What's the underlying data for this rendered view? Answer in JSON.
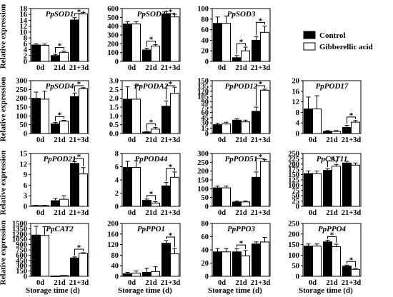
{
  "figure": {
    "y_axis_label": "Relative expression",
    "x_axis_label": "Storage time (d)"
  },
  "legend": {
    "control_label": "Control",
    "ga_label": "Gibberellic acid",
    "control_color": "#000000",
    "ga_color": "#ffffff"
  },
  "chart_data": [
    {
      "type": "bar",
      "title": "PpSOD1",
      "categories": [
        "0d",
        "21d",
        "21+3d"
      ],
      "ylim": [
        0,
        18
      ],
      "yticks": [
        0,
        2,
        4,
        6,
        8,
        10,
        12,
        14,
        16,
        18
      ],
      "series": [
        {
          "name": "Control",
          "values": [
            5.6,
            2.0,
            14.1
          ],
          "errors": [
            0.4,
            0.4,
            0.8
          ]
        },
        {
          "name": "Gibberellic acid",
          "values": [
            5.5,
            3.1,
            16.2
          ],
          "errors": [
            0.4,
            0.4,
            0.5
          ]
        }
      ],
      "significance": [
        1,
        2
      ]
    },
    {
      "type": "bar",
      "title": "PpSOD2",
      "categories": [
        "0d",
        "21d",
        "21+3d"
      ],
      "ylim": [
        0,
        600
      ],
      "yticks": [
        0,
        100,
        200,
        300,
        400,
        500,
        600
      ],
      "series": [
        {
          "name": "Control",
          "values": [
            425,
            130,
            540
          ],
          "errors": [
            25,
            20,
            25
          ]
        },
        {
          "name": "Gibberellic acid",
          "values": [
            425,
            175,
            505
          ],
          "errors": [
            25,
            15,
            30
          ]
        }
      ],
      "significance": [
        1,
        2
      ]
    },
    {
      "type": "bar",
      "title": "PpSOD3",
      "categories": [
        "0d",
        "21d",
        "21+3d"
      ],
      "ylim": [
        0,
        100
      ],
      "yticks": [
        0,
        20,
        40,
        60,
        80,
        100
      ],
      "series": [
        {
          "name": "Control",
          "values": [
            72,
            7,
            40
          ],
          "errors": [
            12,
            4,
            7
          ]
        },
        {
          "name": "Gibberellic acid",
          "values": [
            72,
            20,
            55
          ],
          "errors": [
            14,
            7,
            12
          ]
        }
      ],
      "significance": [
        1,
        2
      ]
    },
    {
      "type": "bar",
      "title": "PpSOD4",
      "categories": [
        "0d",
        "21d",
        "21+3d"
      ],
      "ylim": [
        0,
        300
      ],
      "yticks": [
        0,
        50,
        100,
        150,
        200,
        250,
        300
      ],
      "series": [
        {
          "name": "Control",
          "values": [
            200,
            55,
            210
          ],
          "errors": [
            35,
            8,
            20
          ]
        },
        {
          "name": "Gibberellic acid",
          "values": [
            195,
            70,
            255
          ],
          "errors": [
            45,
            5,
            5
          ]
        }
      ],
      "significance": [
        1,
        2
      ]
    },
    {
      "type": "bar",
      "title": "PpPODA2",
      "categories": [
        "0d",
        "21d",
        "21+3d"
      ],
      "ylim": [
        0,
        3.0
      ],
      "yticks": [
        0,
        0.5,
        1.0,
        1.5,
        2.0,
        2.5,
        3.0
      ],
      "tick_decimals": 1,
      "series": [
        {
          "name": "Control",
          "values": [
            1.95,
            0.08,
            1.55
          ],
          "errors": [
            0.7,
            0.03,
            0.3
          ]
        },
        {
          "name": "Gibberellic acid",
          "values": [
            1.95,
            0.25,
            2.28
          ],
          "errors": [
            0.8,
            0.1,
            0.35
          ]
        }
      ],
      "significance": [
        1,
        2
      ]
    },
    {
      "type": "bar",
      "title": "PpPOD12",
      "categories": [
        "0d",
        "21d",
        "21+3d"
      ],
      "ylim": [
        0,
        150
      ],
      "yticks": [
        0,
        15,
        30,
        45,
        60,
        75,
        90,
        105,
        120,
        135,
        150
      ],
      "series": [
        {
          "name": "Control",
          "values": [
            25,
            38,
            63
          ],
          "errors": [
            4,
            4,
            12
          ]
        },
        {
          "name": "Gibberellic acid",
          "values": [
            27,
            33,
            123
          ],
          "errors": [
            5,
            5,
            3
          ]
        }
      ],
      "significance": [
        2
      ]
    },
    {
      "type": "bar",
      "title": "PpPOD17",
      "categories": [
        "0d",
        "21d",
        "21+3d"
      ],
      "ylim": [
        0,
        20
      ],
      "yticks": [
        0,
        4,
        8,
        12,
        16,
        20
      ],
      "series": [
        {
          "name": "Control",
          "values": [
            9.3,
            0.8,
            2.3
          ],
          "errors": [
            4.5,
            0.3,
            0.8
          ]
        },
        {
          "name": "Gibberellic acid",
          "values": [
            9.3,
            0.8,
            4.3
          ],
          "errors": [
            5.0,
            0.3,
            0.6
          ]
        }
      ],
      "significance": [
        2
      ]
    },
    {
      "type": "bar",
      "title": "PpPOD21",
      "categories": [
        "0d",
        "21d",
        "21+3d"
      ],
      "ylim": [
        0,
        15
      ],
      "yticks": [
        0,
        3,
        6,
        9,
        12,
        15
      ],
      "series": [
        {
          "name": "Control",
          "values": [
            0.2,
            1.6,
            12.2
          ],
          "errors": [
            0.1,
            0.6,
            0.5
          ]
        },
        {
          "name": "Gibberellic acid",
          "values": [
            0.2,
            2.0,
            9.2
          ],
          "errors": [
            0.1,
            1.0,
            1.8
          ]
        }
      ],
      "significance": [
        2
      ]
    },
    {
      "type": "bar",
      "title": "PpPOD44",
      "categories": [
        "0d",
        "21d",
        "21+3d"
      ],
      "ylim": [
        0,
        8
      ],
      "yticks": [
        0,
        2,
        4,
        6,
        8
      ],
      "series": [
        {
          "name": "Control",
          "values": [
            5.9,
            0.9,
            3.1
          ],
          "errors": [
            0.9,
            0.2,
            0.5
          ]
        },
        {
          "name": "Gibberellic acid",
          "values": [
            5.9,
            0.5,
            4.4
          ],
          "errors": [
            1.0,
            0.2,
            0.8
          ]
        }
      ],
      "significance": [
        1,
        2
      ]
    },
    {
      "type": "bar",
      "title": "PpPOD51",
      "categories": [
        "0d",
        "21d",
        "21+3d"
      ],
      "ylim": [
        0,
        300
      ],
      "yticks": [
        0,
        50,
        100,
        150,
        200,
        250,
        300
      ],
      "series": [
        {
          "name": "Control",
          "values": [
            105,
            25,
            165
          ],
          "errors": [
            10,
            5,
            30
          ]
        },
        {
          "name": "Gibberellic acid",
          "values": [
            105,
            25,
            255
          ],
          "errors": [
            10,
            5,
            10
          ]
        }
      ],
      "significance": [
        2
      ]
    },
    {
      "type": "bar",
      "title": "PpCAT11",
      "categories": [
        "0d",
        "21d",
        "21+3d"
      ],
      "ylim": [
        0,
        250
      ],
      "yticks": [
        0,
        25,
        50,
        75,
        100,
        125,
        150,
        175,
        200,
        225,
        250
      ],
      "series": [
        {
          "name": "Control",
          "values": [
            155,
            170,
            205
          ],
          "errors": [
            12,
            8,
            8
          ]
        },
        {
          "name": "Gibberellic acid",
          "values": [
            155,
            190,
            195
          ],
          "errors": [
            12,
            8,
            10
          ]
        }
      ],
      "significance": [
        1
      ]
    },
    {
      "type": "bar",
      "title": "PpCAT2",
      "categories": [
        "0d",
        "21d",
        "21+3d"
      ],
      "ylim": [
        0,
        1500
      ],
      "yticks": [
        0,
        150,
        300,
        450,
        600,
        750,
        900,
        1050,
        1200,
        1350,
        1500
      ],
      "series": [
        {
          "name": "Control",
          "values": [
            1170,
            5,
            520
          ],
          "errors": [
            250,
            3,
            30
          ]
        },
        {
          "name": "Gibberellic acid",
          "values": [
            1160,
            20,
            650
          ],
          "errors": [
            250,
            5,
            20
          ]
        }
      ],
      "significance": [
        2
      ]
    },
    {
      "type": "bar",
      "title": "PpPPO1",
      "categories": [
        "0d",
        "21d",
        "21+3d"
      ],
      "ylim": [
        0,
        200
      ],
      "yticks": [
        0,
        40,
        80,
        120,
        160,
        200
      ],
      "series": [
        {
          "name": "Control",
          "values": [
            10,
            15,
            125
          ],
          "errors": [
            5,
            15,
            10
          ]
        },
        {
          "name": "Gibberellic acid",
          "values": [
            12,
            18,
            85
          ],
          "errors": [
            8,
            18,
            20
          ]
        }
      ],
      "significance": [
        2
      ]
    },
    {
      "type": "bar",
      "title": "PpPPO3",
      "categories": [
        "0d",
        "21d",
        "21+3d"
      ],
      "ylim": [
        0,
        80
      ],
      "yticks": [
        0,
        20,
        40,
        60,
        80
      ],
      "series": [
        {
          "name": "Control",
          "values": [
            37,
            37,
            49
          ],
          "errors": [
            5,
            5,
            3
          ]
        },
        {
          "name": "Gibberellic acid",
          "values": [
            37,
            31,
            52
          ],
          "errors": [
            5,
            8,
            7
          ]
        }
      ],
      "significance": [
        1
      ]
    },
    {
      "type": "bar",
      "title": "PpPPO4",
      "categories": [
        "0d",
        "21d",
        "21+3d"
      ],
      "ylim": [
        0,
        250
      ],
      "yticks": [
        0,
        50,
        100,
        150,
        200,
        250
      ],
      "series": [
        {
          "name": "Control",
          "values": [
            143,
            163,
            48
          ],
          "errors": [
            10,
            8,
            5
          ]
        },
        {
          "name": "Gibberellic acid",
          "values": [
            143,
            140,
            33
          ],
          "errors": [
            10,
            12,
            3
          ]
        }
      ],
      "significance": [
        1,
        2
      ]
    }
  ]
}
